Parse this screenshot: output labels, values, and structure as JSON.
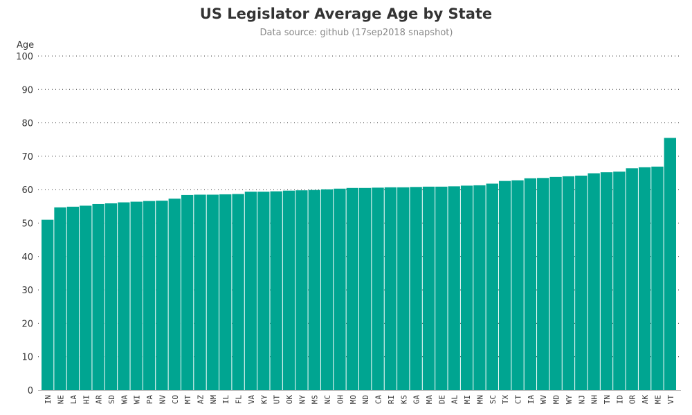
{
  "chart_data": {
    "type": "bar",
    "title": "US Legislator Average Age by State",
    "subtitle": "Data source: github (17sep2018 snapshot)",
    "ylabel": "Age",
    "xlabel": "",
    "ylim": [
      0,
      100
    ],
    "yticks": [
      0,
      10,
      20,
      30,
      40,
      50,
      60,
      70,
      80,
      90,
      100
    ],
    "grid": "horizontal dotted",
    "bar_color": "#00A591",
    "categories": [
      "IN",
      "NE",
      "LA",
      "HI",
      "AR",
      "SD",
      "WA",
      "WI",
      "PA",
      "NV",
      "CO",
      "MT",
      "AZ",
      "NM",
      "IL",
      "FL",
      "VA",
      "KY",
      "UT",
      "OK",
      "NY",
      "MS",
      "NC",
      "OH",
      "MO",
      "ND",
      "CA",
      "RI",
      "KS",
      "GA",
      "MA",
      "DE",
      "AL",
      "MI",
      "MN",
      "SC",
      "TX",
      "CT",
      "IA",
      "WV",
      "MD",
      "WY",
      "NJ",
      "NH",
      "TN",
      "ID",
      "OR",
      "AK",
      "ME",
      "VT"
    ],
    "values": [
      51.0,
      54.7,
      54.9,
      55.2,
      55.7,
      55.9,
      56.2,
      56.4,
      56.6,
      56.7,
      57.3,
      58.4,
      58.5,
      58.5,
      58.6,
      58.7,
      59.4,
      59.4,
      59.5,
      59.7,
      59.8,
      59.9,
      60.1,
      60.3,
      60.5,
      60.5,
      60.6,
      60.7,
      60.7,
      60.8,
      60.9,
      60.9,
      61.0,
      61.2,
      61.3,
      61.8,
      62.6,
      62.8,
      63.4,
      63.5,
      63.8,
      64.0,
      64.2,
      64.9,
      65.2,
      65.4,
      66.4,
      66.7,
      66.9,
      75.5
    ]
  }
}
